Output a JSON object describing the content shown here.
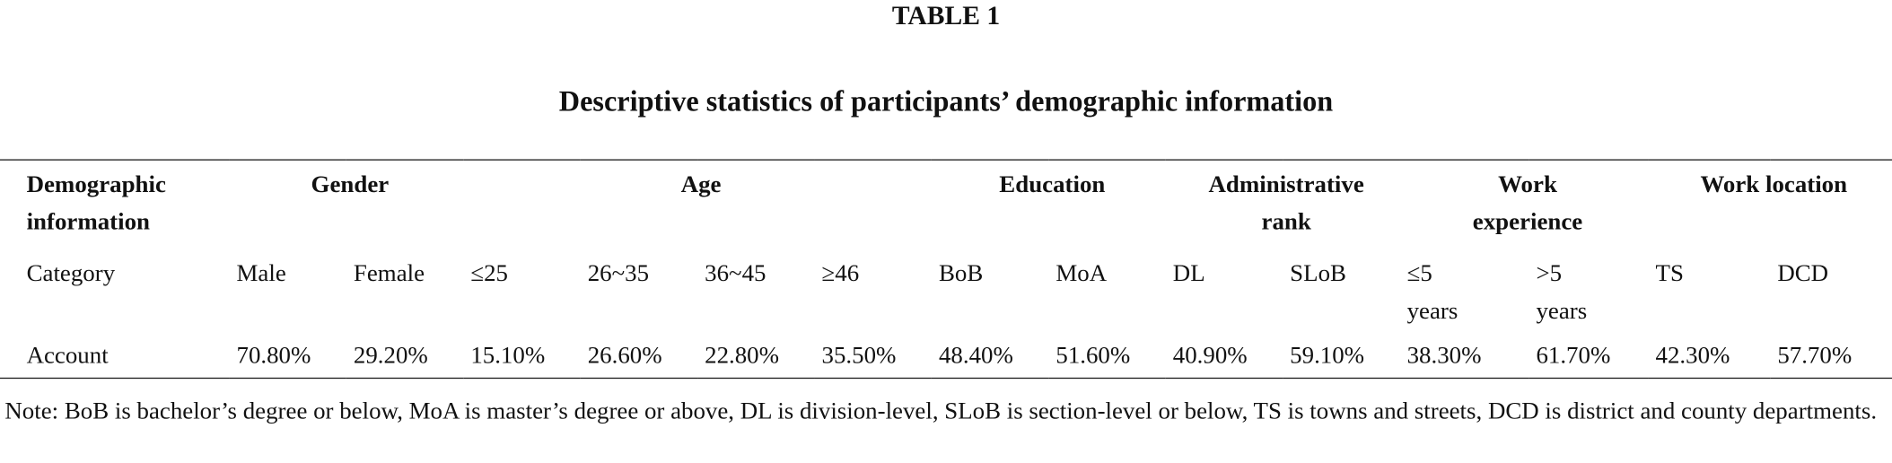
{
  "table_label": "TABLE 1",
  "title": "Descriptive statistics of participants’ demographic information",
  "table": {
    "header": [
      "Demographic information",
      "Gender",
      "Age",
      "Education",
      "Administrative rank",
      "Work experience",
      "Work location"
    ],
    "rows": [
      [
        "Category",
        "Male",
        "Female",
        "≤25",
        "26~35",
        "36~45",
        "≥46",
        "BoB",
        "MoA",
        "DL",
        "SLoB",
        "≤5 years",
        ">5 years",
        "TS",
        "DCD"
      ],
      [
        "Account",
        "70.80%",
        "29.20%",
        "15.10%",
        "26.60%",
        "22.80%",
        "35.50%",
        "48.40%",
        "51.60%",
        "40.90%",
        "59.10%",
        "38.30%",
        "61.70%",
        "42.30%",
        "57.70%"
      ]
    ]
  },
  "note": "Note: BoB is bachelor’s degree or below, MoA is master’s degree or above, DL is division-level, SLoB is section-level or below, TS is towns and streets, DCD is district and county departments."
}
